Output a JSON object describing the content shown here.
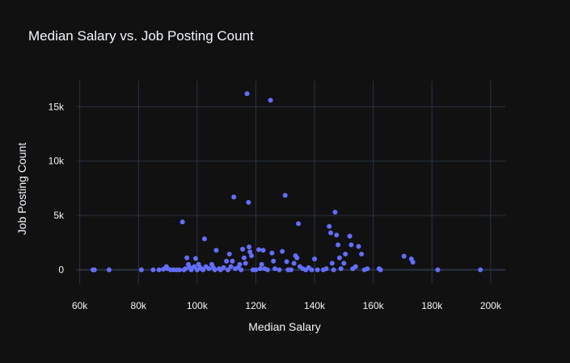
{
  "chart_data": {
    "type": "scatter",
    "title": "Median Salary vs. Job Posting Count",
    "xlabel": "Median Salary",
    "ylabel": "Job Posting Count",
    "xlim": [
      59000,
      205000
    ],
    "ylim": [
      -1300,
      17400
    ],
    "xticks": [
      60000,
      80000,
      100000,
      120000,
      140000,
      160000,
      180000,
      200000
    ],
    "xtick_labels": [
      "60k",
      "80k",
      "100k",
      "120k",
      "140k",
      "160k",
      "180k",
      "200k"
    ],
    "yticks": [
      0,
      5000,
      10000,
      15000
    ],
    "ytick_labels": [
      "0",
      "5k",
      "10k",
      "15k"
    ],
    "grid": true,
    "legend": "none",
    "marker_color": "#636efa",
    "points": [
      [
        64500,
        0
      ],
      [
        65000,
        0
      ],
      [
        70000,
        0
      ],
      [
        81000,
        0
      ],
      [
        85000,
        0
      ],
      [
        87000,
        0
      ],
      [
        88500,
        50
      ],
      [
        89500,
        300
      ],
      [
        90000,
        100
      ],
      [
        91000,
        0
      ],
      [
        92000,
        0
      ],
      [
        93000,
        0
      ],
      [
        94000,
        0
      ],
      [
        95000,
        4400
      ],
      [
        95500,
        0
      ],
      [
        96000,
        100
      ],
      [
        96500,
        1100
      ],
      [
        97000,
        500
      ],
      [
        97500,
        200
      ],
      [
        98000,
        0
      ],
      [
        99000,
        300
      ],
      [
        99500,
        1050
      ],
      [
        100000,
        0
      ],
      [
        100500,
        500
      ],
      [
        101000,
        200
      ],
      [
        101500,
        100
      ],
      [
        102000,
        0
      ],
      [
        102500,
        2850
      ],
      [
        103000,
        300
      ],
      [
        104000,
        100
      ],
      [
        105000,
        500
      ],
      [
        105500,
        200
      ],
      [
        106000,
        0
      ],
      [
        106500,
        1800
      ],
      [
        107500,
        100
      ],
      [
        108000,
        0
      ],
      [
        109000,
        200
      ],
      [
        110000,
        800
      ],
      [
        110500,
        0
      ],
      [
        111000,
        1450
      ],
      [
        111500,
        300
      ],
      [
        112000,
        800
      ],
      [
        112500,
        6700
      ],
      [
        113000,
        100
      ],
      [
        114000,
        200
      ],
      [
        114500,
        500
      ],
      [
        115000,
        0
      ],
      [
        115500,
        1900
      ],
      [
        116000,
        1100
      ],
      [
        116500,
        600
      ],
      [
        117000,
        16200
      ],
      [
        117500,
        6200
      ],
      [
        117700,
        2100
      ],
      [
        118000,
        1650
      ],
      [
        118500,
        1300
      ],
      [
        119000,
        0
      ],
      [
        120000,
        0
      ],
      [
        121000,
        1850
      ],
      [
        121500,
        100
      ],
      [
        122000,
        500
      ],
      [
        122500,
        1800
      ],
      [
        123000,
        100
      ],
      [
        124000,
        0
      ],
      [
        125000,
        15600
      ],
      [
        125500,
        1550
      ],
      [
        126000,
        800
      ],
      [
        126500,
        100
      ],
      [
        128000,
        0
      ],
      [
        129000,
        1700
      ],
      [
        130000,
        6850
      ],
      [
        130500,
        750
      ],
      [
        131000,
        0
      ],
      [
        132000,
        0
      ],
      [
        133000,
        600
      ],
      [
        133500,
        1300
      ],
      [
        134000,
        1100
      ],
      [
        134500,
        4250
      ],
      [
        135000,
        300
      ],
      [
        136000,
        100
      ],
      [
        137000,
        0
      ],
      [
        138000,
        200
      ],
      [
        139000,
        0
      ],
      [
        140000,
        1000
      ],
      [
        141000,
        0
      ],
      [
        143000,
        0
      ],
      [
        144000,
        100
      ],
      [
        145000,
        4000
      ],
      [
        145500,
        3400
      ],
      [
        146000,
        600
      ],
      [
        146500,
        0
      ],
      [
        147000,
        5300
      ],
      [
        147500,
        3200
      ],
      [
        148000,
        2300
      ],
      [
        148500,
        1100
      ],
      [
        149000,
        100
      ],
      [
        150000,
        600
      ],
      [
        150500,
        1450
      ],
      [
        152000,
        3100
      ],
      [
        152500,
        2300
      ],
      [
        153000,
        100
      ],
      [
        154000,
        300
      ],
      [
        155000,
        2150
      ],
      [
        156000,
        1450
      ],
      [
        157000,
        0
      ],
      [
        158000,
        100
      ],
      [
        162000,
        100
      ],
      [
        162500,
        0
      ],
      [
        170500,
        1250
      ],
      [
        173000,
        1000
      ],
      [
        173500,
        700
      ],
      [
        182000,
        0
      ],
      [
        196500,
        0
      ]
    ]
  }
}
